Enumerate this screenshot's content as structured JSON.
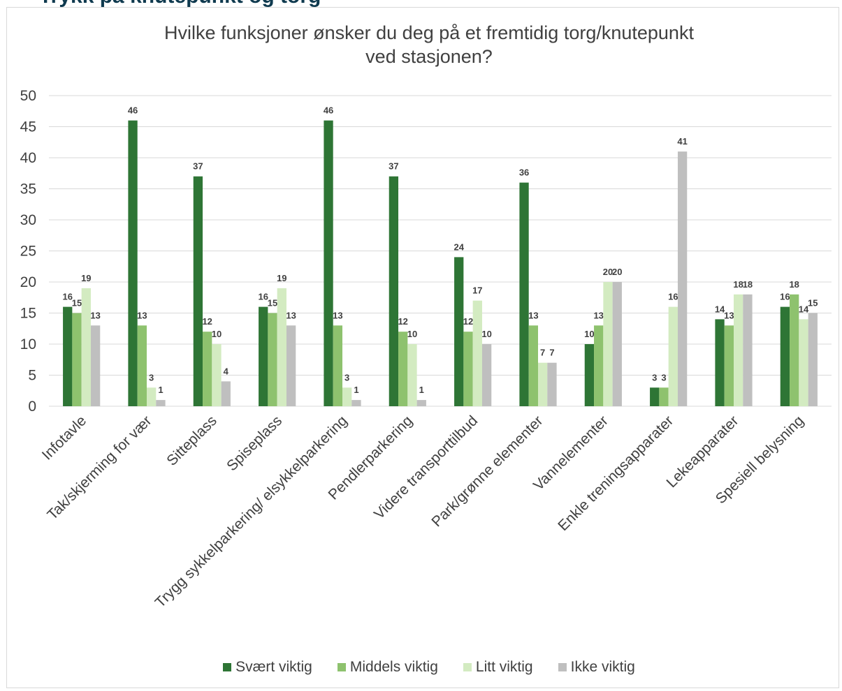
{
  "heading": "Trykk på knutepunkt og torg",
  "chart_data": {
    "type": "bar",
    "title": [
      "Hvilke funksjoner ønsker du deg på et fremtidig torg/knutepunkt",
      "ved stasjonen?"
    ],
    "categories": [
      "Infotavle",
      "Tak/skjerming for vær",
      "Sitteplass",
      "Spiseplass",
      "Trygg sykkelparkering/ elsykkelparkering",
      "Pendlerparkering",
      "Videre transporttilbud",
      "Park/grønne elementer",
      "Vannelementer",
      "Enkle treningsapparater",
      "Lekeapparater",
      "Spesiell belysning"
    ],
    "series": [
      {
        "name": "Svært viktig",
        "color": "#2e7535",
        "values": [
          16,
          46,
          37,
          16,
          46,
          37,
          24,
          36,
          10,
          3,
          14,
          16
        ]
      },
      {
        "name": "Middels viktig",
        "color": "#8ec26e",
        "values": [
          15,
          13,
          12,
          15,
          13,
          12,
          12,
          13,
          13,
          3,
          13,
          18
        ]
      },
      {
        "name": "Litt viktig",
        "color": "#d3ebc1",
        "values": [
          19,
          3,
          10,
          19,
          3,
          10,
          17,
          7,
          20,
          16,
          18,
          14
        ]
      },
      {
        "name": "Ikke viktig",
        "color": "#bfbfbf",
        "values": [
          13,
          1,
          4,
          13,
          1,
          1,
          10,
          7,
          20,
          41,
          18,
          15
        ]
      }
    ],
    "ylim": [
      0,
      50
    ],
    "yticks": [
      0,
      5,
      10,
      15,
      20,
      25,
      30,
      35,
      40,
      45,
      50
    ],
    "grid": true,
    "legend": "bottom",
    "xlabel": "",
    "ylabel": ""
  }
}
